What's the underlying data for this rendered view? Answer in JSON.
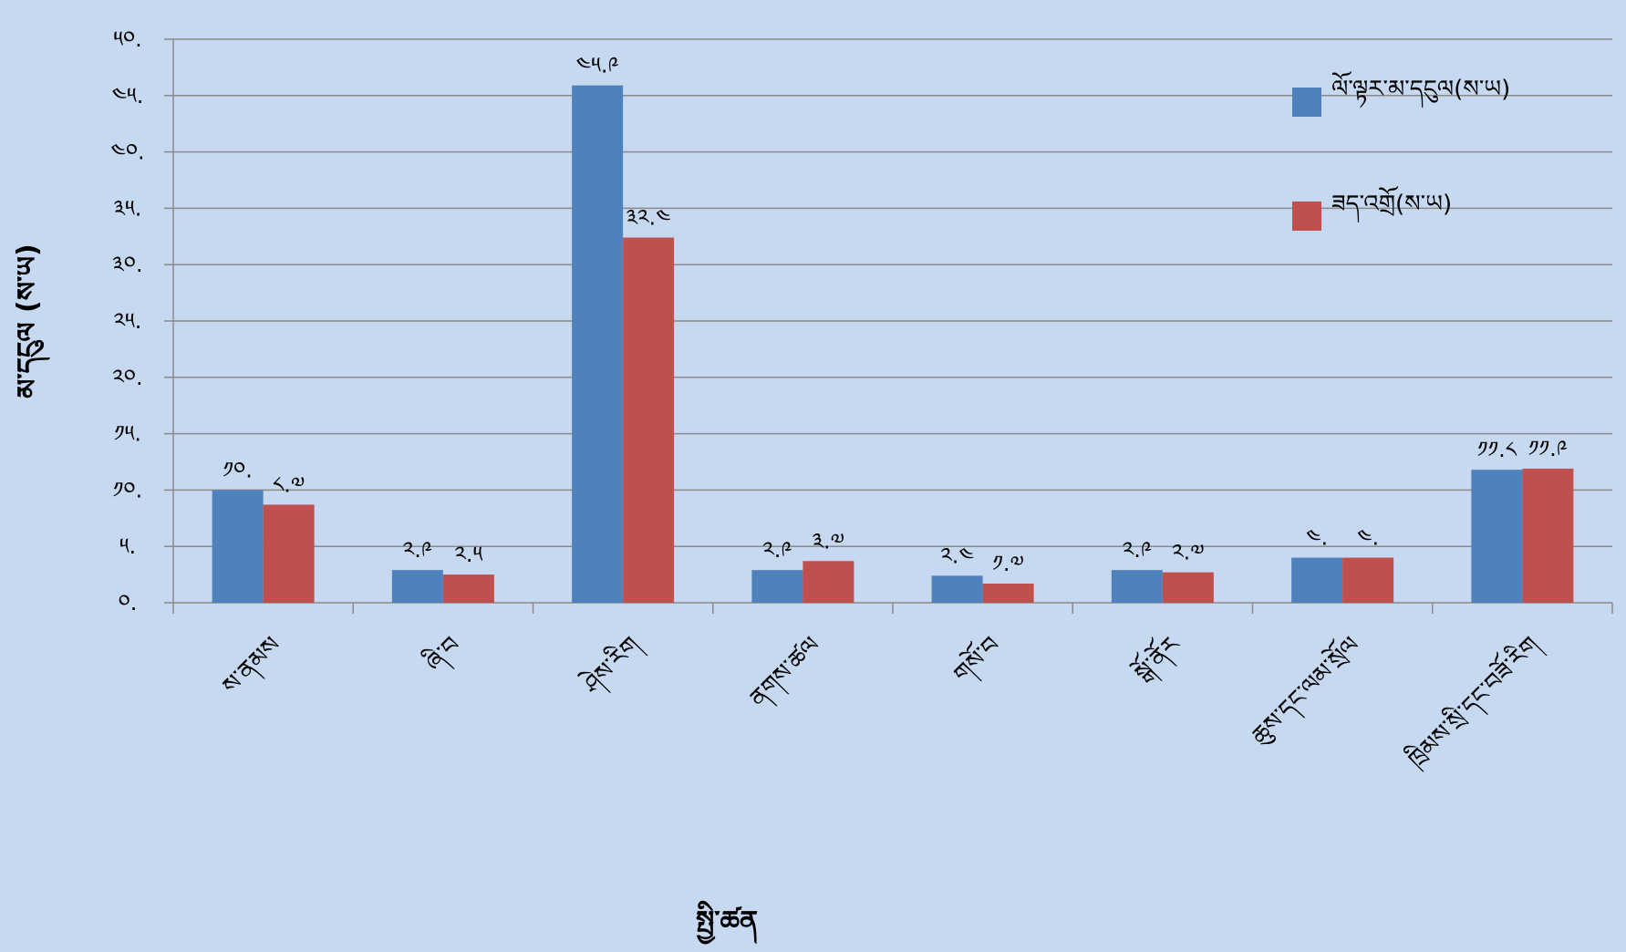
{
  "chart_data": {
    "type": "bar",
    "title": "",
    "xlabel": "སྤྱི་ཚན",
    "ylabel": "མ་དངུལ (ས་ཡ)",
    "ylim": [
      0,
      50
    ],
    "y_ticks": [
      "༠.",
      "༥.",
      "༡༠.",
      "༡༥.",
      "༢༠.",
      "༢༥.",
      "༣༠.",
      "༣༥.",
      "༤༠.",
      "༤༥.",
      "༥༠."
    ],
    "categories": [
      "ས་ནམས",
      "ཞི་བ",
      "ཤེས་རིག",
      "ནགས་ཚལ",
      "གསོ་བ",
      "སྒོ་ནོར",
      "ཆུས་དང་ལམ་སྲོལ",
      "ཁྲིམས་སྲི་དང་བཟོ་རིག"
    ],
    "grid": true,
    "legend_position": "top-right",
    "series": [
      {
        "name": "ལོ་ལྟར་མ་དངུལ(ས་ཡ)",
        "color": "#4f81bd",
        "values": [
          10.0,
          2.9,
          45.9,
          2.9,
          2.4,
          2.9,
          4.0,
          11.8
        ],
        "labels": [
          "༡༠.",
          "༢.༩",
          "༤༥.༩",
          "༢.༩",
          "༢.༤",
          "༢.༩",
          "༤.",
          "༡༡.༨"
        ]
      },
      {
        "name": "ཟད་འགྲོ(ས་ཡ)",
        "color": "#c0504d",
        "values": [
          8.7,
          2.5,
          32.4,
          3.7,
          1.7,
          2.7,
          4.0,
          11.9
        ],
        "labels": [
          "༨.༧",
          "༢.༥",
          "༣༢.༤",
          "༣.༧",
          "༡.༧",
          "༢.༧",
          "༤.",
          "༡༡.༩"
        ]
      }
    ]
  }
}
